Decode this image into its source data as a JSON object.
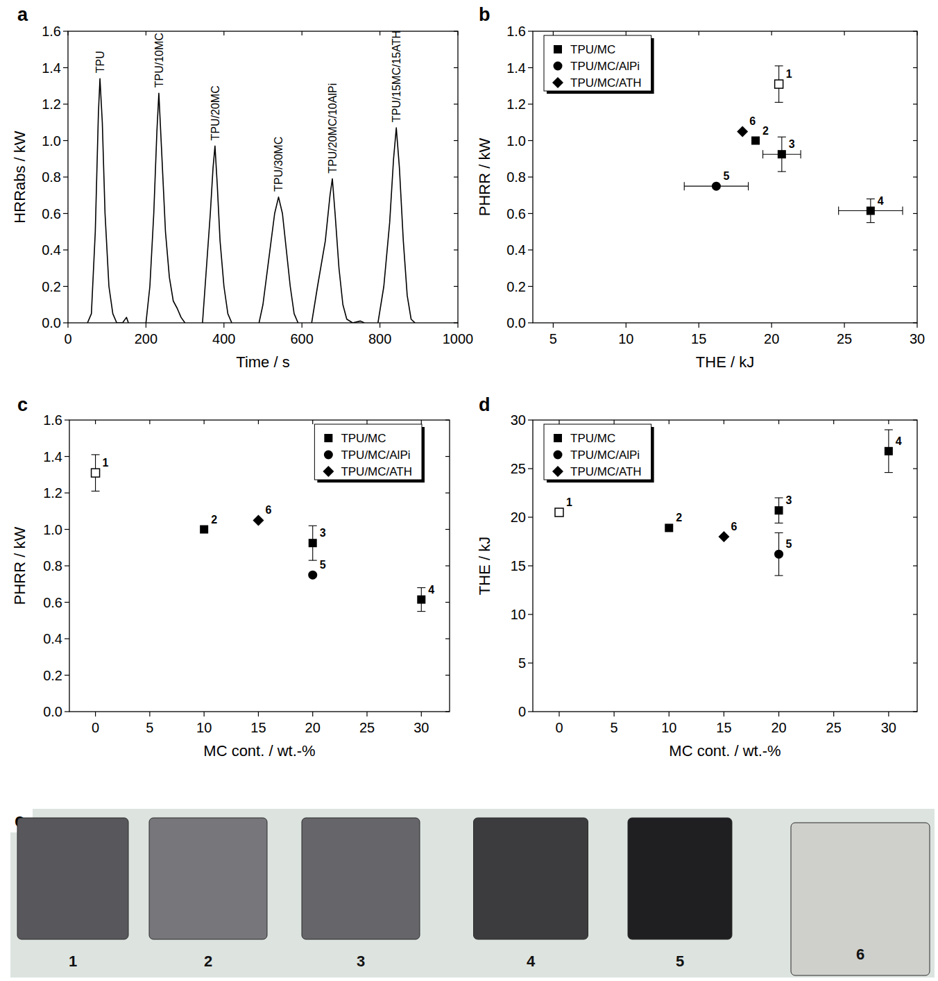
{
  "chart_data": [
    {
      "type": "line",
      "panel": "a",
      "x_label": "Time / s",
      "y_label": "HRRabs / kW",
      "xlim": [
        0,
        1000
      ],
      "xticks": [
        0,
        200,
        400,
        600,
        800,
        1000
      ],
      "ylim": [
        0,
        1.6
      ],
      "yticks": [
        {
          "value": 0,
          "label": "0.0"
        },
        0.2,
        0.4,
        0.6,
        0.8,
        {
          "value": 1,
          "label": "1.0"
        },
        1.2,
        1.4,
        1.6
      ],
      "series": [
        {
          "name": "TPU",
          "color": "#000000",
          "x": [
            50,
            60,
            70,
            78,
            82,
            88,
            95,
            105,
            115,
            125,
            140,
            150,
            155
          ],
          "values": [
            0,
            0.05,
            0.5,
            1.15,
            1.34,
            1.1,
            0.6,
            0.2,
            0.05,
            0,
            0,
            0.03,
            0
          ]
        },
        {
          "name": "TPU/10MC",
          "color": "#000000",
          "x": [
            200,
            210,
            220,
            228,
            233,
            240,
            250,
            260,
            270,
            280,
            290,
            300
          ],
          "values": [
            0,
            0.2,
            0.6,
            1.05,
            1.26,
            0.95,
            0.5,
            0.25,
            0.12,
            0.08,
            0.03,
            0
          ]
        },
        {
          "name": "TPU/20MC",
          "color": "#000000",
          "x": [
            345,
            355,
            365,
            372,
            377,
            383,
            390,
            400,
            410,
            420
          ],
          "values": [
            0,
            0.3,
            0.6,
            0.85,
            0.97,
            0.75,
            0.45,
            0.2,
            0.05,
            0
          ]
        },
        {
          "name": "TPU/30MC",
          "color": "#000000",
          "x": [
            490,
            500,
            515,
            530,
            540,
            550,
            560,
            570,
            580,
            590
          ],
          "values": [
            0,
            0.1,
            0.35,
            0.6,
            0.69,
            0.6,
            0.4,
            0.2,
            0.05,
            0
          ]
        },
        {
          "name": "TPU/20MC/10AlPi",
          "color": "#000000",
          "x": [
            625,
            640,
            660,
            672,
            678,
            685,
            695,
            705,
            715,
            730,
            750,
            760
          ],
          "values": [
            0,
            0.2,
            0.45,
            0.7,
            0.79,
            0.6,
            0.3,
            0.1,
            0.02,
            0,
            0.01,
            0
          ]
        },
        {
          "name": "TPU/15MC/15ATH",
          "color": "#000000",
          "x": [
            795,
            810,
            825,
            835,
            842,
            850,
            860,
            870,
            880,
            890
          ],
          "values": [
            0,
            0.2,
            0.55,
            0.9,
            1.07,
            0.85,
            0.45,
            0.15,
            0.02,
            0
          ]
        }
      ]
    },
    {
      "type": "scatter",
      "panel": "b",
      "x_label": "THE / kJ",
      "y_label": "PHRR / kW",
      "legend": "upper left",
      "xlim": [
        3.6,
        30
      ],
      "xticks": [
        5,
        10,
        15,
        20,
        25,
        30
      ],
      "ylim": [
        0,
        1.6
      ],
      "yticks": [
        {
          "value": 0,
          "label": "0.0"
        },
        0.2,
        0.4,
        0.6,
        0.8,
        {
          "value": 1,
          "label": "1.0"
        },
        1.2,
        1.4,
        1.6
      ],
      "series": [
        {
          "marker": "open_square",
          "color": "#000000",
          "x": [
            20.5
          ],
          "values": [
            1.31
          ],
          "yerr": [
            0.1
          ],
          "xerr": [
            null
          ],
          "point_labels": [
            "1"
          ]
        },
        {
          "name": "TPU/MC",
          "marker": "square",
          "color": "#000000",
          "x": [
            18.9,
            20.7,
            26.8
          ],
          "values": [
            1.0,
            0.925,
            0.615
          ],
          "yerr": [
            null,
            0.095,
            0.065
          ],
          "xerr": [
            null,
            1.3,
            2.2
          ],
          "point_labels": [
            "2",
            "3",
            "4"
          ]
        },
        {
          "name": "TPU/MC/AlPi",
          "marker": "circle",
          "color": "#000000",
          "x": [
            16.2
          ],
          "values": [
            0.75
          ],
          "yerr": [
            null
          ],
          "xerr": [
            2.2
          ],
          "point_labels": [
            "5"
          ]
        },
        {
          "name": "TPU/MC/ATH",
          "marker": "diamond",
          "color": "#000000",
          "x": [
            18.0
          ],
          "values": [
            1.05
          ],
          "yerr": [
            null
          ],
          "xerr": [
            null
          ],
          "point_labels": [
            "6"
          ]
        }
      ]
    },
    {
      "type": "scatter",
      "panel": "c",
      "x_label": "MC cont. / wt.-%",
      "y_label": "PHRR / kW",
      "legend": "upper right",
      "xlim": [
        -2.4,
        32.6
      ],
      "xticks": [
        0,
        5,
        10,
        15,
        20,
        25,
        30
      ],
      "ylim": [
        0,
        1.6
      ],
      "yticks": [
        {
          "value": 0,
          "label": "0.0"
        },
        0.2,
        0.4,
        0.6,
        0.8,
        {
          "value": 1,
          "label": "1.0"
        },
        1.2,
        1.4,
        1.6
      ],
      "series": [
        {
          "marker": "open_square",
          "color": "#000000",
          "x": [
            0
          ],
          "values": [
            1.31
          ],
          "yerr": [
            0.1
          ],
          "point_labels": [
            "1"
          ]
        },
        {
          "name": "TPU/MC",
          "marker": "square",
          "color": "#000000",
          "x": [
            10,
            20,
            30
          ],
          "values": [
            1.0,
            0.925,
            0.615
          ],
          "yerr": [
            null,
            0.095,
            0.065
          ],
          "point_labels": [
            "2",
            "3",
            "4"
          ]
        },
        {
          "name": "TPU/MC/AlPi",
          "marker": "circle",
          "color": "#000000",
          "x": [
            20
          ],
          "values": [
            0.75
          ],
          "yerr": [
            null
          ],
          "point_labels": [
            "5"
          ]
        },
        {
          "name": "TPU/MC/ATH",
          "marker": "diamond",
          "color": "#000000",
          "x": [
            15
          ],
          "values": [
            1.05
          ],
          "yerr": [
            null
          ],
          "point_labels": [
            "6"
          ]
        }
      ]
    },
    {
      "type": "scatter",
      "panel": "d",
      "x_label": "MC cont. / wt.-%",
      "y_label": "THE / kJ",
      "legend": "upper left",
      "xlim": [
        -2.4,
        32.6
      ],
      "xticks": [
        0,
        5,
        10,
        15,
        20,
        25,
        30
      ],
      "ylim": [
        0,
        30
      ],
      "yticks": [
        0,
        5,
        10,
        15,
        20,
        25,
        30
      ],
      "series": [
        {
          "marker": "open_square",
          "color": "#000000",
          "x": [
            0
          ],
          "values": [
            20.5
          ],
          "yerr": [
            null
          ],
          "point_labels": [
            "1"
          ]
        },
        {
          "name": "TPU/MC",
          "marker": "square",
          "color": "#000000",
          "x": [
            10,
            20,
            30
          ],
          "values": [
            18.9,
            20.7,
            26.8
          ],
          "yerr": [
            null,
            1.3,
            2.2
          ],
          "point_labels": [
            "2",
            "3",
            "4"
          ]
        },
        {
          "name": "TPU/MC/AlPi",
          "marker": "circle",
          "color": "#000000",
          "x": [
            20
          ],
          "values": [
            16.2
          ],
          "yerr": [
            2.2
          ],
          "point_labels": [
            "5"
          ]
        },
        {
          "name": "TPU/MC/ATH",
          "marker": "diamond",
          "color": "#000000",
          "x": [
            15
          ],
          "values": [
            18.0
          ],
          "yerr": [
            null
          ],
          "point_labels": [
            "6"
          ]
        }
      ]
    }
  ],
  "photo": {
    "panel": "e",
    "labels": [
      "1",
      "2",
      "3",
      "4",
      "5",
      "6"
    ]
  }
}
